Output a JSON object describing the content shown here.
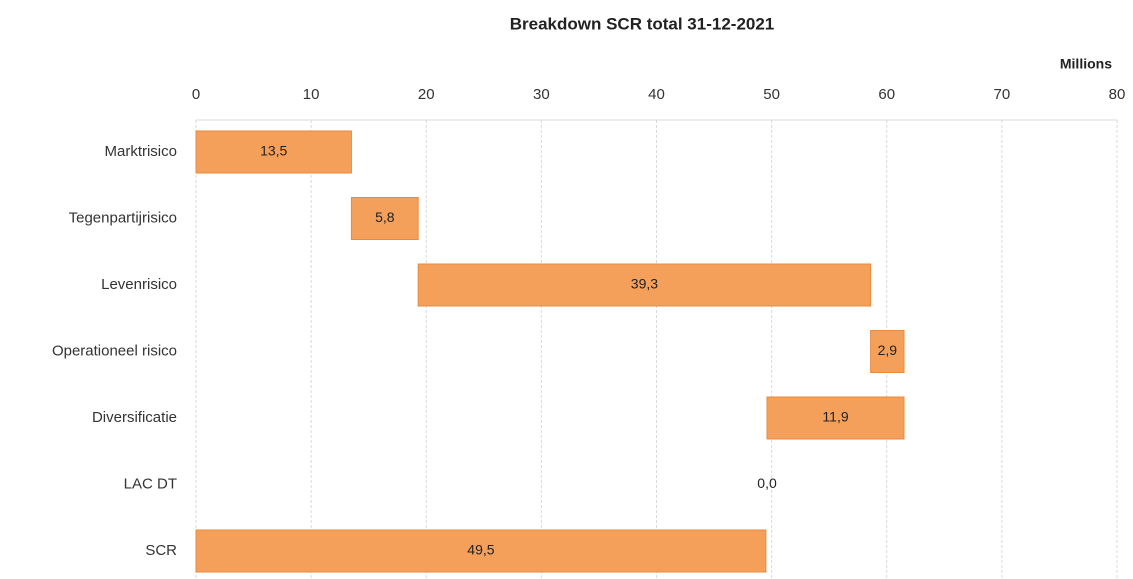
{
  "chart_data": {
    "type": "waterfall",
    "title": "Breakdown SCR total 31-12-2021",
    "unit_label": "Millions",
    "categories": [
      "Marktrisico",
      "Tegenpartijrisico",
      "Levenrisico",
      "Operationeel risico",
      "Diversificatie",
      "LAC DT",
      "SCR"
    ],
    "values": [
      13.5,
      5.8,
      39.3,
      2.9,
      -11.9,
      0.0,
      49.5
    ],
    "value_labels": [
      "13,5",
      "5,8",
      "39,3",
      "2,9",
      "11,9",
      "0,0",
      "49,5"
    ],
    "measures": [
      "relative",
      "relative",
      "relative",
      "relative",
      "relative",
      "relative",
      "total"
    ],
    "color": "#f5a05a",
    "xlim": [
      0,
      80
    ],
    "xticks": [
      0,
      10,
      20,
      30,
      40,
      50,
      60,
      70,
      80
    ],
    "grid": true
  }
}
